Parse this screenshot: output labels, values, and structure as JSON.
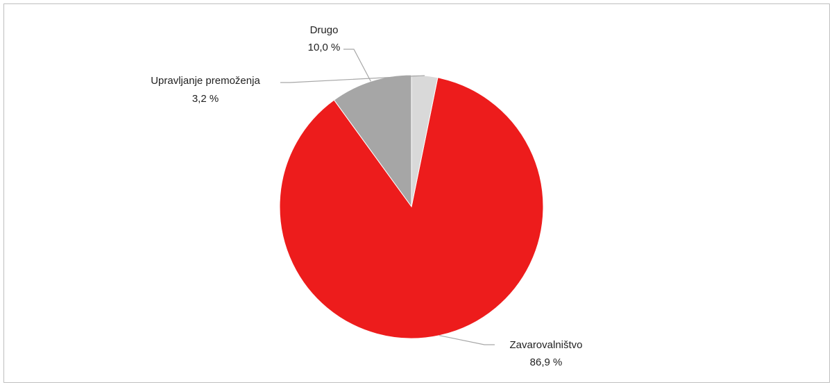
{
  "chart_data": {
    "type": "pie",
    "title": "",
    "slices": [
      {
        "label": "Drugo",
        "value_label": "10,0 %",
        "value": 10.0,
        "color": "#a6a6a6"
      },
      {
        "label": "Zavarovalništvo",
        "value_label": "86,9 %",
        "value": 86.9,
        "color": "#ed1c1c"
      },
      {
        "label": "Upravljanje premoženja",
        "value_label": "3,2 %",
        "value": 3.2,
        "color": "#d9d9d9"
      }
    ],
    "start_angle": "12 o'clock",
    "direction": "counter-clockwise",
    "legend": "none",
    "data_labels": "outside with leader lines"
  }
}
